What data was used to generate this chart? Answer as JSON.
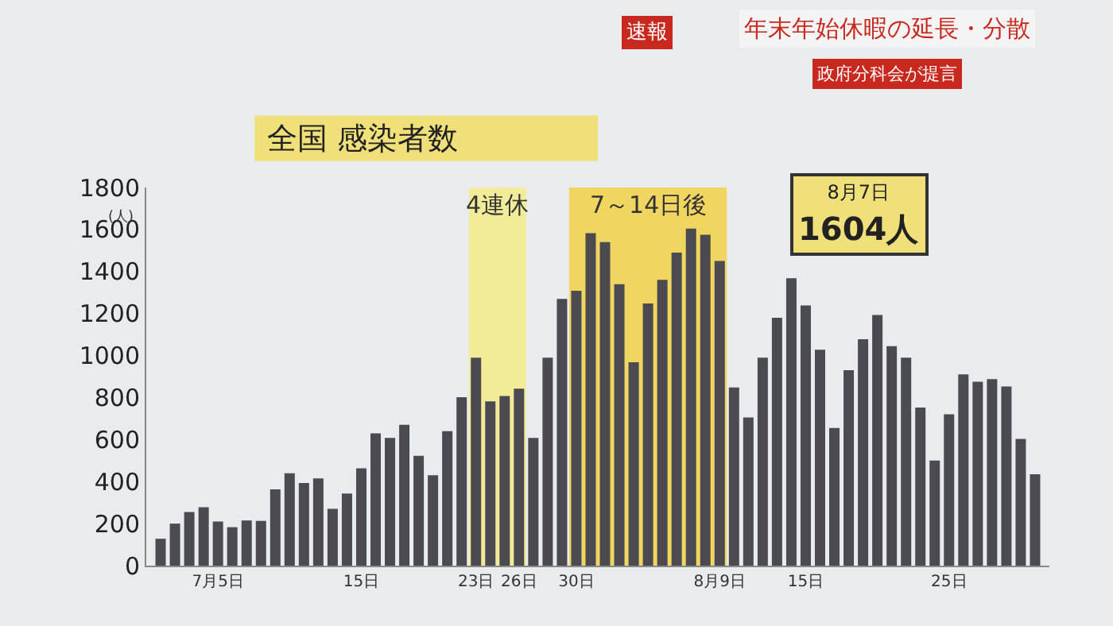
{
  "chart_data": {
    "type": "bar",
    "title": "全国 感染者数",
    "ylabel": "(人)",
    "categories": [
      null,
      null,
      null,
      null,
      "7月5日",
      null,
      null,
      null,
      null,
      null,
      null,
      null,
      null,
      null,
      "15日",
      null,
      null,
      null,
      null,
      null,
      null,
      null,
      "23日",
      null,
      null,
      "26日",
      null,
      null,
      null,
      "30日",
      null,
      null,
      null,
      null,
      null,
      null,
      null,
      null,
      null,
      "8月9日",
      null,
      null,
      null,
      null,
      null,
      "15日",
      null,
      null,
      null,
      null,
      null,
      null,
      null,
      null,
      null,
      "25日",
      null,
      null,
      null,
      null,
      null,
      null
    ],
    "values": [
      128,
      200,
      255,
      278,
      210,
      183,
      215,
      213,
      363,
      440,
      393,
      415,
      270,
      343,
      463,
      630,
      608,
      670,
      523,
      430,
      640,
      802,
      990,
      782,
      807,
      842,
      608,
      990,
      1270,
      1308,
      1583,
      1540,
      1340,
      968,
      1248,
      1360,
      1490,
      1604,
      1575,
      1450,
      848,
      705,
      990,
      1180,
      1368,
      1238,
      1028,
      655,
      930,
      1078,
      1193,
      1045,
      990,
      753,
      500,
      720,
      910,
      875,
      888,
      853,
      603,
      435
    ],
    "color": "#4a4a50",
    "ylim": [
      0,
      1800
    ],
    "yticks": [
      0,
      200,
      400,
      600,
      800,
      1000,
      1200,
      1400,
      1600,
      1800
    ],
    "grid": false,
    "bands": [
      {
        "axis": "x",
        "from": "23日",
        "to": "26日",
        "label": "4連休",
        "color": "#f2ec9a"
      },
      {
        "axis": "x",
        "from": "30日",
        "to": "8月9日",
        "label": "7～14日後",
        "color": "#f0d660"
      }
    ],
    "annotations": [
      "8月7日 1604人",
      "速報",
      "年末年始休暇の延長・分散",
      "政府分科会が提言"
    ]
  }
}
